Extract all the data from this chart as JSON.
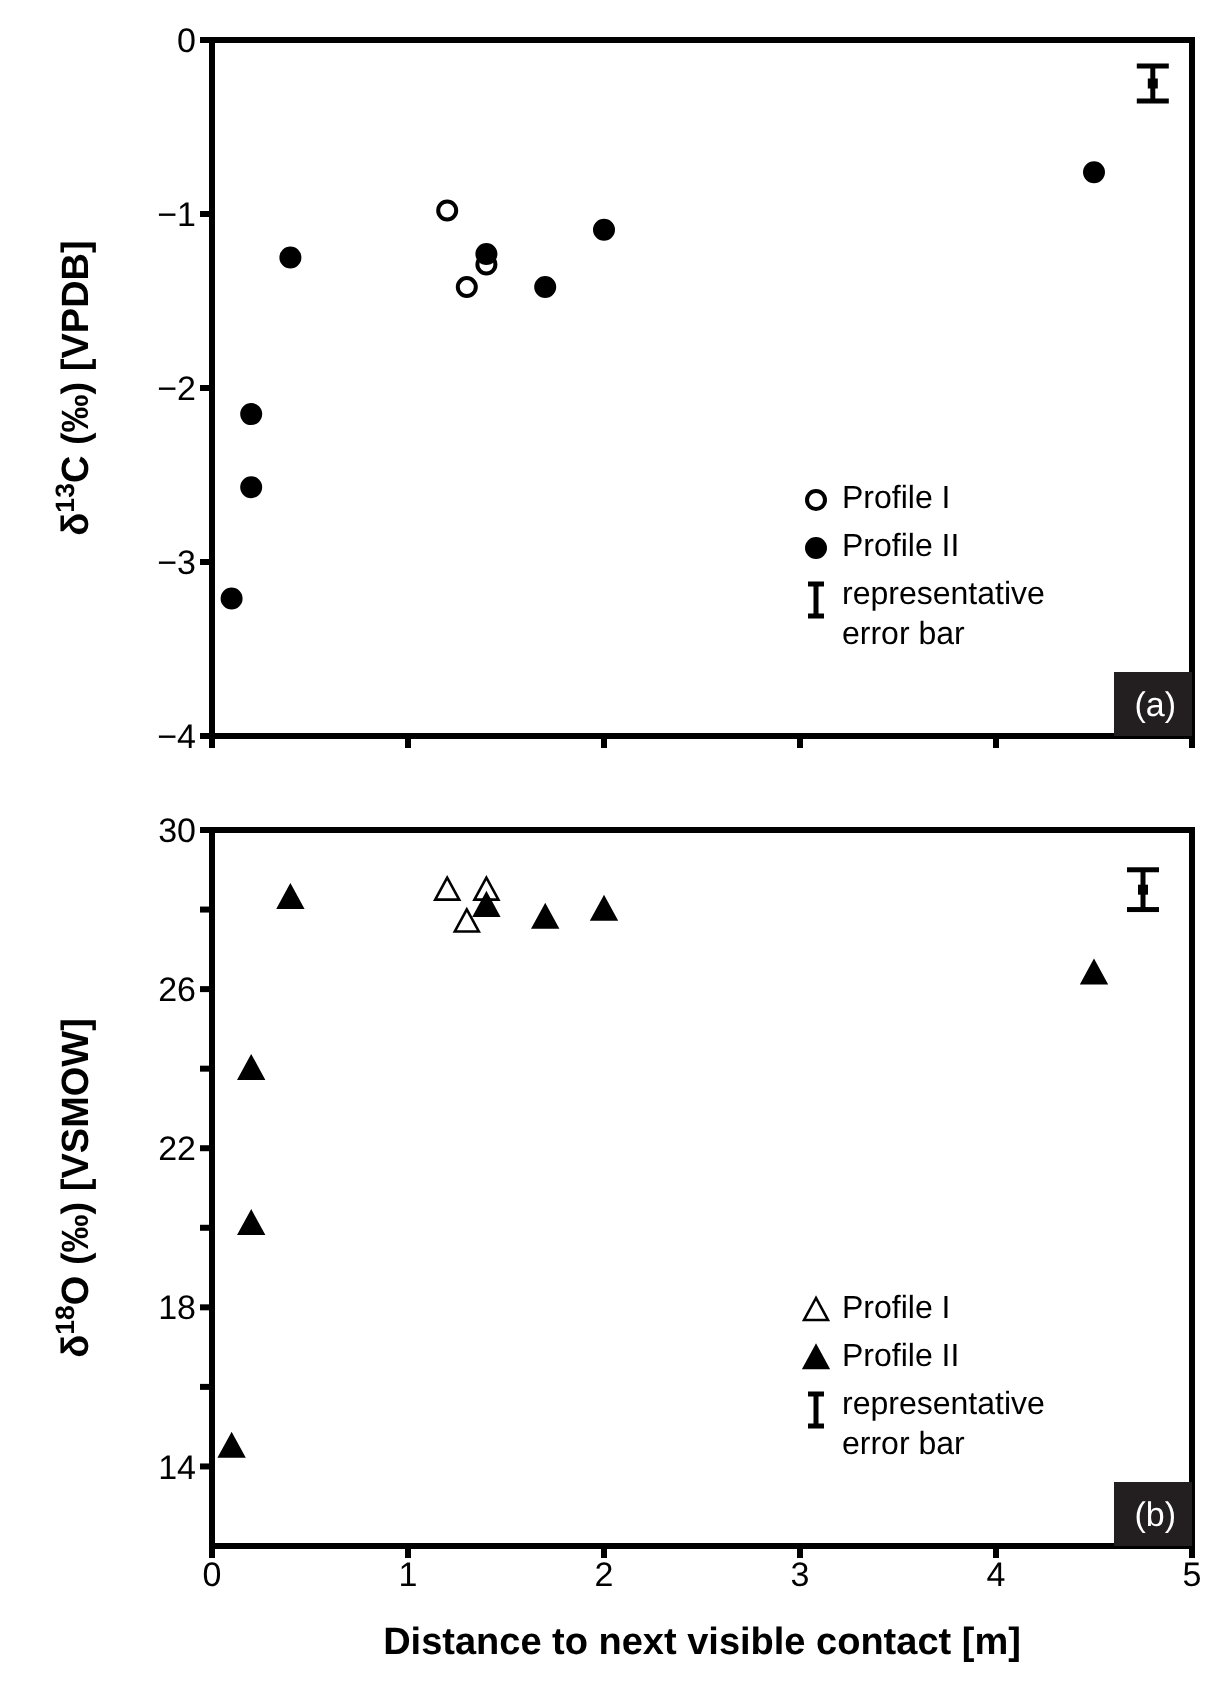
{
  "chart_data": [
    {
      "type": "scatter",
      "ylabel": "δ$^{13}$C (‰) [VPDB]",
      "xlim": [
        0,
        5
      ],
      "xticks": [
        0,
        1,
        2,
        3,
        4,
        5
      ],
      "ylim": [
        -4,
        0
      ],
      "yticks": [
        -4,
        -3,
        -2,
        -1,
        0
      ],
      "tick_labels": "y",
      "grid": false,
      "legend": "bottom right",
      "marker": "circle",
      "annotations": [
        "(a)"
      ],
      "series": [
        {
          "name": "Profile I",
          "color": "#ffffff",
          "x": [
            1.2,
            1.3,
            1.4
          ],
          "values": [
            -0.98,
            -1.42,
            -1.29
          ]
        },
        {
          "name": "Profile II",
          "color": "#000000",
          "x": [
            0.1,
            0.2,
            0.2,
            0.4,
            1.4,
            1.7,
            2.0,
            4.5
          ],
          "values": [
            -3.21,
            -2.15,
            -2.57,
            -1.25,
            -1.23,
            -1.42,
            -1.09,
            -0.76
          ]
        },
        {
          "name": "representative error bar",
          "color": "#000000",
          "marker": "square",
          "x": [
            4.8
          ],
          "values": [
            -0.25
          ],
          "errors": [
            0.1
          ]
        }
      ]
    },
    {
      "type": "scatter",
      "xlabel": "Distance to next visible contact [m]",
      "ylabel": "δ$^{18}$O (‰) [VSMOW]",
      "xlim": [
        0,
        5
      ],
      "xticks": [
        0,
        1,
        2,
        3,
        4,
        5
      ],
      "ylim": [
        12,
        30
      ],
      "yticks": [
        14,
        {
          "value": 16,
          "label": null
        },
        18,
        {
          "value": 20,
          "label": null
        },
        22,
        {
          "value": 24,
          "label": null
        },
        26,
        {
          "value": 28,
          "label": null
        },
        30
      ],
      "grid": false,
      "legend": "bottom right",
      "marker": "triangle",
      "annotations": [
        "(b)"
      ],
      "series": [
        {
          "name": "Profile I",
          "color": "#ffffff",
          "x": [
            1.2,
            1.3,
            1.4
          ],
          "values": [
            28.5,
            27.7,
            28.5
          ]
        },
        {
          "name": "Profile II",
          "color": "#000000",
          "x": [
            0.1,
            0.2,
            0.2,
            0.4,
            1.4,
            1.7,
            2.0,
            4.5
          ],
          "values": [
            14.5,
            20.1,
            24.0,
            28.3,
            28.1,
            27.8,
            28.0,
            26.4
          ]
        },
        {
          "name": "representative error bar",
          "color": "#000000",
          "marker": "square",
          "x": [
            4.75
          ],
          "values": [
            28.5
          ],
          "errors": [
            0.5
          ]
        }
      ]
    }
  ]
}
